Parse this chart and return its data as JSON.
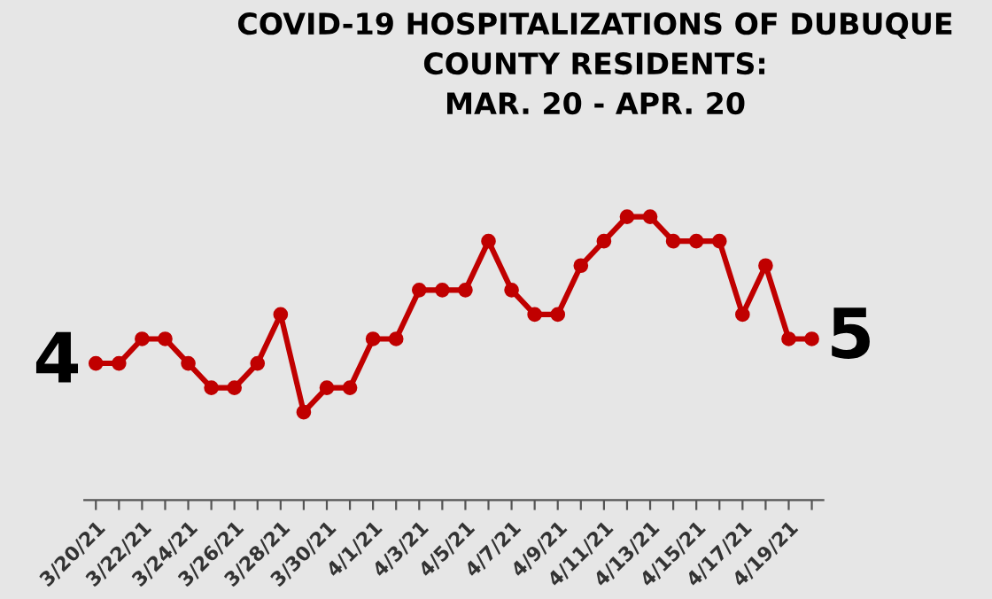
{
  "chart_data": {
    "type": "line",
    "title": "COVID-19 HOSPITALIZATIONS OF DUBUQUE\nCOUNTY RESIDENTS:\nMAR. 20 - APR. 20",
    "categories": [
      "3/20/21",
      null,
      "3/22/21",
      null,
      "3/24/21",
      null,
      "3/26/21",
      null,
      "3/28/21",
      null,
      "3/30/21",
      null,
      "4/1/21",
      null,
      "4/3/21",
      null,
      "4/5/21",
      null,
      "4/7/21",
      null,
      "4/9/21",
      null,
      "4/11/21",
      null,
      "4/13/21",
      null,
      "4/15/21",
      null,
      "4/17/21",
      null,
      "4/19/21",
      null
    ],
    "series": [
      {
        "color": "#c00000",
        "values": [
          4,
          4,
          5,
          5,
          4,
          3,
          3,
          4,
          6,
          2,
          3,
          3,
          5,
          5,
          7,
          7,
          7,
          9,
          7,
          6,
          6,
          8,
          9,
          10,
          10,
          9,
          9,
          9,
          6,
          8,
          5,
          5
        ],
        "value_labels": [
          "4",
          null,
          null,
          null,
          null,
          null,
          null,
          null,
          null,
          null,
          null,
          null,
          null,
          null,
          null,
          null,
          null,
          null,
          null,
          null,
          null,
          null,
          null,
          null,
          null,
          null,
          null,
          null,
          null,
          null,
          null,
          "5"
        ]
      }
    ],
    "marker": "circle",
    "line_style": "solid",
    "grid": false,
    "legend": false
  }
}
